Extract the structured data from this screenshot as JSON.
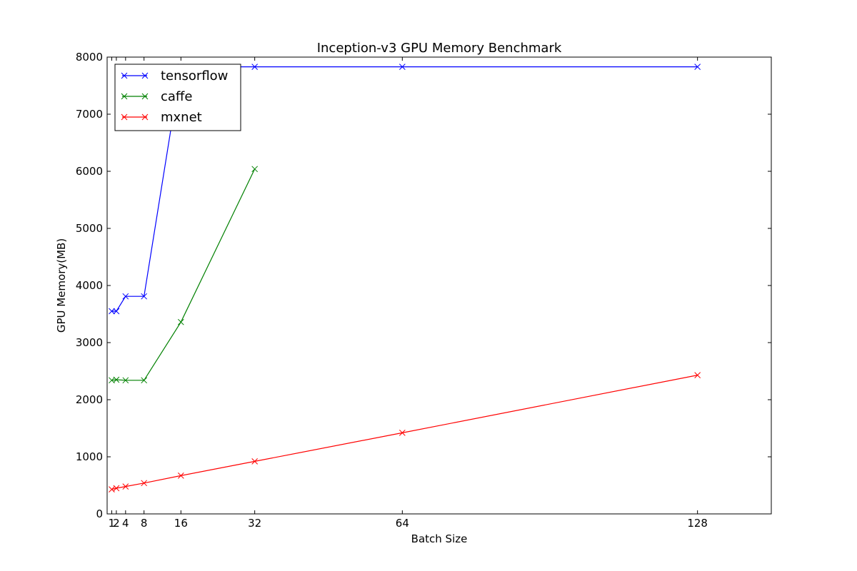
{
  "chart_data": {
    "type": "line",
    "title": "Inception-v3 GPU Memory Benchmark",
    "xlabel": "Batch Size",
    "ylabel": "GPU Memory(MB)",
    "xlim": [
      0,
      144
    ],
    "ylim": [
      0,
      8000
    ],
    "xticks": [
      1,
      2,
      4,
      8,
      16,
      32,
      64,
      128
    ],
    "xtick_labels": [
      "1",
      "2",
      "4",
      "8",
      "16",
      "32",
      "64",
      "128"
    ],
    "yticks": [
      0,
      1000,
      2000,
      3000,
      4000,
      5000,
      6000,
      7000,
      8000
    ],
    "ytick_labels": [
      "0",
      "1000",
      "2000",
      "3000",
      "4000",
      "5000",
      "6000",
      "7000",
      "8000"
    ],
    "grid": false,
    "legend_position": "top-left",
    "marker": "x",
    "series": [
      {
        "name": "tensorflow",
        "color": "#0000ff",
        "x": [
          1,
          2,
          4,
          8,
          16,
          32,
          64,
          128
        ],
        "y": [
          3550,
          3550,
          3810,
          3810,
          7830,
          7830,
          7830,
          7830
        ]
      },
      {
        "name": "caffe",
        "color": "#008000",
        "x": [
          1,
          2,
          4,
          8,
          16,
          32
        ],
        "y": [
          2340,
          2350,
          2340,
          2340,
          3360,
          6040
        ]
      },
      {
        "name": "mxnet",
        "color": "#ff0000",
        "x": [
          1,
          2,
          4,
          8,
          16,
          32,
          64,
          128
        ],
        "y": [
          430,
          450,
          480,
          540,
          670,
          920,
          1420,
          2430
        ]
      }
    ]
  }
}
